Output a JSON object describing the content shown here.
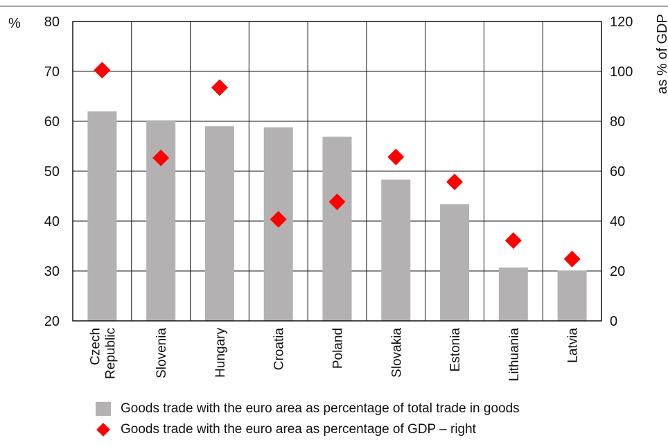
{
  "chart_data": {
    "type": "bar",
    "categories": [
      "Czech Republic",
      "Slovenia",
      "Hungary",
      "Croatia",
      "Poland",
      "Slovakia",
      "Estonia",
      "Lithuania",
      "Latvia"
    ],
    "category_lines": [
      [
        "Czech",
        "Republic"
      ],
      [
        "Slovenia"
      ],
      [
        "Hungary"
      ],
      [
        "Croatia"
      ],
      [
        "Poland"
      ],
      [
        "Slovakia"
      ],
      [
        "Estonia"
      ],
      [
        "Lithuania"
      ],
      [
        "Latvia"
      ]
    ],
    "series": [
      {
        "name": "Goods trade with the euro area as percentage of total trade in goods",
        "type": "bar",
        "axis": "left",
        "color": "#b3b1b1",
        "values": [
          62,
          60.2,
          59,
          58.8,
          56.9,
          48.3,
          43.4,
          30.7,
          30.1
        ]
      },
      {
        "name": "Goods trade with the euro area as percentage of GDP – right",
        "type": "scatter",
        "marker": "diamond",
        "axis": "right",
        "color": "#ff0000",
        "values": [
          100.5,
          65.3,
          93.5,
          40.7,
          47.7,
          65.7,
          55.7,
          32.2,
          24.8
        ]
      }
    ],
    "y_left": {
      "label": "%",
      "range": [
        20,
        80
      ],
      "ticks": [
        "20",
        "30",
        "40",
        "50",
        "60",
        "70",
        "80"
      ]
    },
    "y_right": {
      "label": "as % of GDP",
      "range": [
        0,
        120
      ],
      "ticks": [
        "0",
        "20",
        "40",
        "60",
        "80",
        "100",
        "120"
      ]
    },
    "grid": true,
    "legend_position": "bottom"
  }
}
